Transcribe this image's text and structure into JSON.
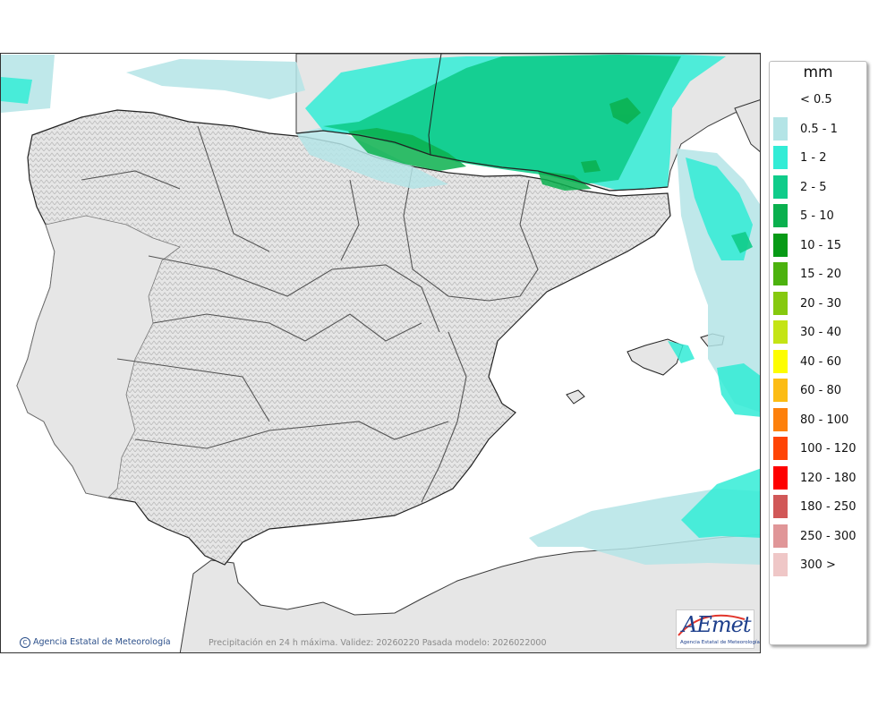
{
  "map": {
    "credit": "Agencia Estatal de Meteorología",
    "caption": "Precipitación en 24 h máxima. Validez: 20260220 Pasada modelo: 2026022000",
    "logo": {
      "text": "AEmet",
      "subtitle": "Agencia Estatal de Meteorología"
    },
    "colors": {
      "land": "#e6e6e6",
      "sea": "#ffffff",
      "border": "#2a2a2a",
      "relief": "#9e9e9e"
    }
  },
  "legend": {
    "title": "mm",
    "items": [
      {
        "label": "< 0.5",
        "color": "#ffffff"
      },
      {
        "label": "0.5 - 1",
        "color": "#b4e4e6"
      },
      {
        "label": "1 - 2",
        "color": "#32ecd6"
      },
      {
        "label": "2 - 5",
        "color": "#0fcc8a"
      },
      {
        "label": "5 - 10",
        "color": "#0ab04e"
      },
      {
        "label": "10 - 15",
        "color": "#079a16"
      },
      {
        "label": "15 - 20",
        "color": "#4cb20e"
      },
      {
        "label": "20 - 30",
        "color": "#86c90f"
      },
      {
        "label": "30 - 40",
        "color": "#c4e415"
      },
      {
        "label": "40 - 60",
        "color": "#fdfd00"
      },
      {
        "label": "60 - 80",
        "color": "#fcbc14"
      },
      {
        "label": "80 - 100",
        "color": "#fd800b"
      },
      {
        "label": "100 - 120",
        "color": "#ff4405"
      },
      {
        "label": "120 - 180",
        "color": "#fe0000"
      },
      {
        "label": "180 - 250",
        "color": "#d15858"
      },
      {
        "label": "250 - 300",
        "color": "#e09698"
      },
      {
        "label": "300 >",
        "color": "#efc7c7"
      }
    ]
  }
}
